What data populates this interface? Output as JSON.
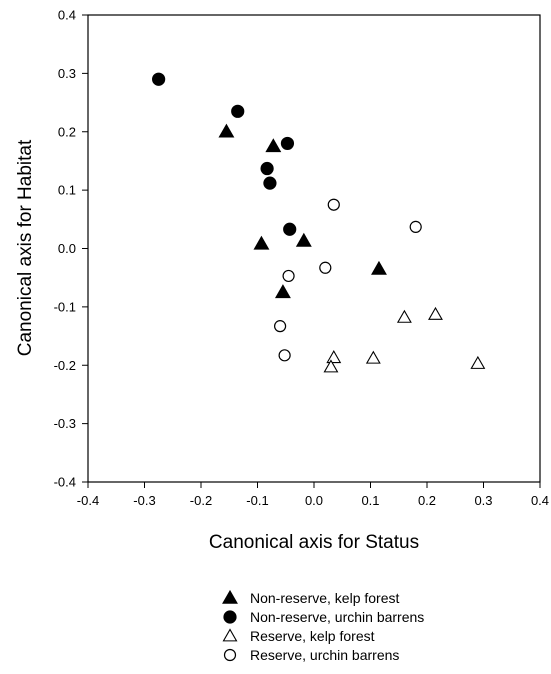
{
  "chart_data": {
    "type": "scatter",
    "title": "",
    "xlabel": "Canonical axis for Status",
    "ylabel": "Canonical axis for Habitat",
    "xlim": [
      -0.4,
      0.4
    ],
    "ylim": [
      -0.4,
      0.4
    ],
    "x_ticks": [
      -0.4,
      -0.3,
      -0.2,
      -0.1,
      0.0,
      0.1,
      0.2,
      0.3,
      0.4
    ],
    "y_ticks": [
      -0.4,
      -0.3,
      -0.2,
      -0.1,
      0.0,
      0.1,
      0.2,
      0.3,
      0.4
    ],
    "x_tick_labels": [
      "-0.4",
      "-0.3",
      "-0.2",
      "-0.1",
      "0.0",
      "0.1",
      "0.2",
      "0.3",
      "0.4"
    ],
    "y_tick_labels": [
      "-0.4",
      "-0.3",
      "-0.2",
      "-0.1",
      "0.0",
      "0.1",
      "0.2",
      "0.3",
      "0.4"
    ],
    "grid": false,
    "legend_position": "bottom-center",
    "series": [
      {
        "name": "Non-reserve, kelp forest",
        "marker": "triangle",
        "filled": true,
        "color": "#000000",
        "points": [
          [
            -0.155,
            0.2
          ],
          [
            -0.072,
            0.175
          ],
          [
            -0.093,
            0.008
          ],
          [
            -0.018,
            0.013
          ],
          [
            -0.055,
            -0.075
          ],
          [
            0.115,
            -0.035
          ]
        ]
      },
      {
        "name": "Non-reserve, urchin barrens",
        "marker": "circle",
        "filled": true,
        "color": "#000000",
        "points": [
          [
            -0.275,
            0.29
          ],
          [
            -0.135,
            0.235
          ],
          [
            -0.047,
            0.18
          ],
          [
            -0.083,
            0.137
          ],
          [
            -0.078,
            0.112
          ],
          [
            -0.043,
            0.033
          ]
        ]
      },
      {
        "name": "Reserve, kelp forest",
        "marker": "triangle",
        "filled": false,
        "color": "#000000",
        "points": [
          [
            0.035,
            -0.187
          ],
          [
            0.03,
            -0.203
          ],
          [
            0.105,
            -0.188
          ],
          [
            0.16,
            -0.118
          ],
          [
            0.215,
            -0.113
          ],
          [
            0.29,
            -0.197
          ]
        ]
      },
      {
        "name": "Reserve, urchin barrens",
        "marker": "circle",
        "filled": false,
        "color": "#000000",
        "points": [
          [
            0.035,
            0.075
          ],
          [
            0.18,
            0.037
          ],
          [
            0.02,
            -0.033
          ],
          [
            -0.045,
            -0.047
          ],
          [
            -0.06,
            -0.133
          ],
          [
            -0.052,
            -0.183
          ]
        ]
      }
    ]
  }
}
